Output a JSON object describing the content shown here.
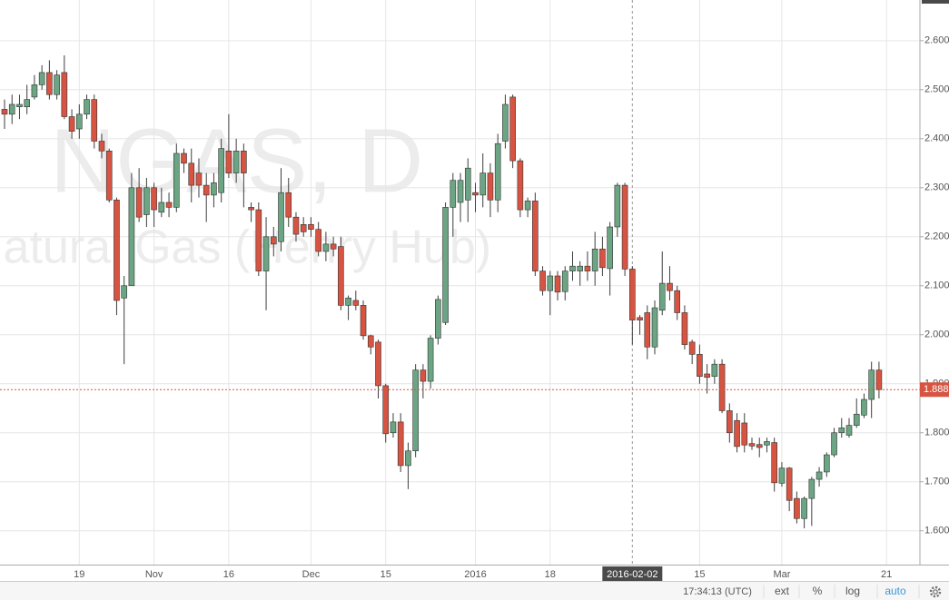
{
  "chart_data": {
    "type": "candlestick",
    "watermark": {
      "symbol": "NGAS, D",
      "description": "Natural Gas (Henry Hub)"
    },
    "categories": [
      null,
      null,
      null,
      null,
      null,
      null,
      null,
      null,
      null,
      null,
      "19",
      null,
      null,
      null,
      null,
      null,
      null,
      null,
      null,
      null,
      "Nov",
      null,
      null,
      null,
      null,
      null,
      null,
      null,
      null,
      null,
      "16",
      null,
      null,
      null,
      null,
      null,
      null,
      null,
      null,
      null,
      null,
      "Dec",
      null,
      null,
      null,
      null,
      null,
      null,
      null,
      null,
      null,
      "15",
      null,
      null,
      null,
      null,
      null,
      null,
      null,
      null,
      null,
      null,
      null,
      "2016",
      null,
      null,
      null,
      null,
      null,
      null,
      null,
      null,
      null,
      "18",
      null,
      null,
      null,
      null,
      null,
      null,
      null,
      null,
      null,
      null,
      "2016-02-02",
      null,
      null,
      null,
      null,
      null,
      null,
      null,
      null,
      "15",
      null,
      null,
      null,
      null,
      null,
      null,
      null,
      null,
      null,
      null,
      "Mar",
      null,
      null,
      null,
      null,
      null,
      null,
      null,
      null,
      null,
      null,
      null,
      null,
      null,
      "21"
    ],
    "open": [
      2.46,
      2.45,
      2.465,
      2.465,
      2.485,
      2.51,
      2.535,
      2.49,
      2.535,
      2.445,
      2.42,
      2.45,
      2.48,
      2.395,
      2.375,
      2.275,
      2.075,
      2.1,
      2.3,
      2.245,
      2.3,
      2.25,
      2.27,
      2.26,
      2.37,
      2.35,
      2.33,
      2.305,
      2.285,
      2.29,
      2.375,
      2.33,
      2.375,
      2.26,
      2.255,
      2.13,
      2.2,
      2.19,
      2.29,
      2.24,
      2.225,
      2.225,
      2.215,
      2.17,
      2.185,
      2.18,
      2.06,
      2.07,
      2.06,
      1.998,
      1.985,
      1.896,
      1.8,
      1.822,
      1.733,
      1.763,
      1.928,
      1.905,
      1.993,
      2.025,
      2.26,
      2.27,
      2.275,
      2.29,
      2.285,
      2.33,
      2.275,
      2.395,
      2.485,
      2.355,
      2.255,
      2.273,
      2.13,
      2.09,
      2.12,
      2.088,
      2.13,
      2.13,
      2.14,
      2.13,
      2.175,
      2.135,
      2.22,
      2.305,
      2.134,
      2.035,
      2.045,
      1.975,
      2.05,
      2.105,
      2.09,
      2.045,
      1.985,
      1.96,
      1.92,
      1.915,
      1.94,
      1.845,
      1.825,
      1.82,
      1.778,
      1.776,
      1.775,
      1.78,
      1.697,
      1.728,
      1.666,
      1.625,
      1.666,
      1.705,
      1.72,
      1.755,
      1.8,
      1.795,
      1.815,
      1.836,
      1.868,
      1.928,
      null
    ],
    "high": [
      2.48,
      2.49,
      2.49,
      2.51,
      2.53,
      2.55,
      2.56,
      2.54,
      2.57,
      2.46,
      2.47,
      2.49,
      2.49,
      2.41,
      2.38,
      2.28,
      2.12,
      2.33,
      2.34,
      2.32,
      2.31,
      2.3,
      2.29,
      2.39,
      2.38,
      2.38,
      2.36,
      2.33,
      2.33,
      2.4,
      2.45,
      2.4,
      2.39,
      2.27,
      2.27,
      2.24,
      2.22,
      2.34,
      2.32,
      2.25,
      2.24,
      2.24,
      2.23,
      2.21,
      2.2,
      2.2,
      2.08,
      2.09,
      2.07,
      2.0,
      1.99,
      1.9,
      1.84,
      1.84,
      1.78,
      1.94,
      1.94,
      1.999,
      2.08,
      2.27,
      2.33,
      2.33,
      2.36,
      2.31,
      2.37,
      2.35,
      2.41,
      2.49,
      2.49,
      2.36,
      2.28,
      2.29,
      2.14,
      2.13,
      2.13,
      2.14,
      2.17,
      2.15,
      2.17,
      2.21,
      2.2,
      2.23,
      2.31,
      2.31,
      2.14,
      2.04,
      2.06,
      2.07,
      2.17,
      2.14,
      2.1,
      2.06,
      1.99,
      1.98,
      1.94,
      1.95,
      1.95,
      1.86,
      1.84,
      1.84,
      1.79,
      1.79,
      1.79,
      1.79,
      1.74,
      1.73,
      1.68,
      1.67,
      1.71,
      1.73,
      1.76,
      1.81,
      1.83,
      1.83,
      1.87,
      1.88,
      1.945,
      1.945,
      null
    ],
    "low": [
      2.42,
      2.43,
      2.44,
      2.45,
      2.48,
      2.5,
      2.48,
      2.48,
      2.44,
      2.4,
      2.4,
      2.44,
      2.38,
      2.36,
      2.27,
      2.04,
      1.94,
      2.1,
      2.23,
      2.22,
      2.22,
      2.24,
      2.24,
      2.25,
      2.33,
      2.27,
      2.28,
      2.23,
      2.26,
      2.27,
      2.32,
      2.31,
      2.26,
      2.23,
      2.12,
      2.05,
      2.16,
      2.17,
      2.22,
      2.19,
      2.2,
      2.2,
      2.16,
      2.15,
      2.16,
      2.05,
      2.03,
      2.05,
      1.99,
      1.96,
      1.87,
      1.78,
      1.79,
      1.72,
      1.685,
      1.75,
      1.87,
      1.89,
      1.98,
      2.02,
      2.2,
      2.23,
      2.23,
      2.25,
      2.26,
      2.24,
      2.25,
      2.38,
      2.34,
      2.24,
      2.24,
      2.12,
      2.08,
      2.04,
      2.07,
      2.07,
      2.11,
      2.1,
      2.11,
      2.1,
      2.12,
      2.08,
      2.2,
      2.12,
      1.98,
      2.0,
      1.95,
      1.96,
      2.04,
      2.07,
      2.03,
      1.97,
      1.94,
      1.9,
      1.88,
      1.9,
      1.84,
      1.78,
      1.76,
      1.76,
      1.765,
      1.75,
      1.76,
      1.68,
      1.69,
      1.64,
      1.615,
      1.605,
      1.61,
      1.69,
      1.71,
      1.75,
      1.79,
      1.79,
      1.81,
      1.83,
      1.83,
      1.87,
      null
    ],
    "close": [
      2.45,
      2.47,
      2.47,
      2.48,
      2.51,
      2.535,
      2.49,
      2.53,
      2.445,
      2.415,
      2.45,
      2.48,
      2.395,
      2.375,
      2.275,
      2.07,
      2.1,
      2.3,
      2.24,
      2.3,
      2.255,
      2.27,
      2.26,
      2.37,
      2.35,
      2.305,
      2.305,
      2.285,
      2.31,
      2.38,
      2.33,
      2.375,
      2.33,
      2.255,
      2.13,
      2.2,
      2.185,
      2.29,
      2.24,
      2.205,
      2.21,
      2.215,
      2.17,
      2.185,
      2.175,
      2.06,
      2.075,
      2.06,
      1.998,
      1.975,
      1.896,
      1.798,
      1.822,
      1.733,
      1.763,
      1.928,
      1.905,
      1.993,
      2.072,
      2.26,
      2.315,
      2.315,
      2.34,
      2.285,
      2.33,
      2.275,
      2.39,
      2.47,
      2.355,
      2.255,
      2.273,
      2.13,
      2.09,
      2.12,
      2.087,
      2.13,
      2.14,
      2.14,
      2.13,
      2.175,
      2.137,
      2.22,
      2.305,
      2.134,
      2.03,
      2.03,
      1.975,
      2.055,
      2.105,
      2.09,
      2.045,
      1.98,
      1.96,
      1.915,
      1.913,
      1.94,
      1.845,
      1.8,
      1.772,
      1.775,
      1.773,
      1.77,
      1.782,
      1.698,
      1.728,
      1.662,
      1.625,
      1.666,
      1.705,
      1.72,
      1.755,
      1.8,
      1.81,
      1.815,
      1.838,
      1.868,
      1.928,
      1.888,
      null
    ],
    "up_color": "#6ba583",
    "down_color": "#d75442",
    "wick_color": "#3e3e3e",
    "ylim": [
      1.531,
      2.683
    ],
    "yticks": [
      {
        "value": 1.6,
        "label": "1.600"
      },
      {
        "value": 1.7,
        "label": "1.700"
      },
      {
        "value": 1.8,
        "label": "1.800"
      },
      {
        "value": 1.9,
        "label": "1.900"
      },
      {
        "value": 2.0,
        "label": "2.000"
      },
      {
        "value": 2.1,
        "label": "2.100"
      },
      {
        "value": 2.2,
        "label": "2.200"
      },
      {
        "value": 2.3,
        "label": "2.300"
      },
      {
        "value": 2.4,
        "label": "2.400"
      },
      {
        "value": 2.5,
        "label": "2.500"
      },
      {
        "value": 2.6,
        "label": "2.600"
      }
    ],
    "last_price": {
      "value": 1.888,
      "label": "1.888"
    },
    "grid": true,
    "toolbar": {
      "clock": "17:34:13 (UTC)",
      "buttons": [
        "ext",
        "%",
        "log",
        "auto"
      ]
    }
  }
}
